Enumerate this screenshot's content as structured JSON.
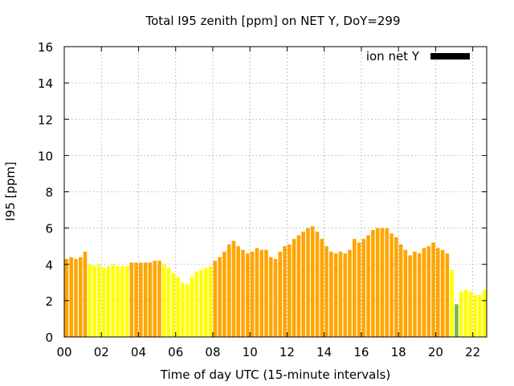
{
  "chart_data": {
    "type": "bar",
    "title": "Total I95 zenith [ppm] on NET Y, DoY=299",
    "xlabel": "Time of day UTC (15-minute intervals)",
    "ylabel": "I95 [ppm]",
    "ylim": [
      0,
      16
    ],
    "xlim": [
      0,
      22.75
    ],
    "yticks": [
      "0",
      "2",
      "4",
      "6",
      "8",
      "10",
      "12",
      "14",
      "16"
    ],
    "xticks": [
      "00",
      "02",
      "04",
      "06",
      "08",
      "10",
      "12",
      "14",
      "16",
      "18",
      "20",
      "22"
    ],
    "grid": true,
    "legend": {
      "position": "top-right",
      "entries": [
        {
          "name": "ion net Y",
          "color": "#000000"
        }
      ]
    },
    "colors": {
      "orange": "#ffa500",
      "yellow": "#ffff00",
      "green": "#7ab648"
    },
    "interval_hours": 0.25,
    "values": [
      4.3,
      4.4,
      4.3,
      4.4,
      4.7,
      4.0,
      3.9,
      4.0,
      3.8,
      3.9,
      4.0,
      3.9,
      3.9,
      3.9,
      4.1,
      4.1,
      4.1,
      4.1,
      4.1,
      4.2,
      4.2,
      4.0,
      3.8,
      3.5,
      3.3,
      3.0,
      2.9,
      3.3,
      3.6,
      3.7,
      3.8,
      3.9,
      4.2,
      4.4,
      4.7,
      5.1,
      5.3,
      5.0,
      4.8,
      4.6,
      4.7,
      4.9,
      4.8,
      4.8,
      4.4,
      4.3,
      4.7,
      5.0,
      5.1,
      5.4,
      5.6,
      5.8,
      6.0,
      6.1,
      5.8,
      5.4,
      5.0,
      4.7,
      4.6,
      4.7,
      4.6,
      4.8,
      5.4,
      5.2,
      5.4,
      5.6,
      5.9,
      6.0,
      6.0,
      6.0,
      5.7,
      5.5,
      5.1,
      4.8,
      4.5,
      4.7,
      4.6,
      4.9,
      5.0,
      5.2,
      4.9,
      4.8,
      4.6,
      3.7,
      1.8,
      2.5,
      2.6,
      2.5,
      2.3,
      2.3,
      2.6
    ],
    "bar_colors": [
      "orange",
      "orange",
      "orange",
      "orange",
      "orange",
      "yellow",
      "yellow",
      "yellow",
      "yellow",
      "yellow",
      "yellow",
      "yellow",
      "yellow",
      "yellow",
      "orange",
      "orange",
      "orange",
      "orange",
      "orange",
      "orange",
      "orange",
      "yellow",
      "yellow",
      "yellow",
      "yellow",
      "yellow",
      "yellow",
      "yellow",
      "yellow",
      "yellow",
      "yellow",
      "yellow",
      "orange",
      "orange",
      "orange",
      "orange",
      "orange",
      "orange",
      "orange",
      "orange",
      "orange",
      "orange",
      "orange",
      "orange",
      "orange",
      "orange",
      "orange",
      "orange",
      "orange",
      "orange",
      "orange",
      "orange",
      "orange",
      "orange",
      "orange",
      "orange",
      "orange",
      "orange",
      "orange",
      "orange",
      "orange",
      "orange",
      "orange",
      "orange",
      "orange",
      "orange",
      "orange",
      "orange",
      "orange",
      "orange",
      "orange",
      "orange",
      "orange",
      "orange",
      "orange",
      "orange",
      "orange",
      "orange",
      "orange",
      "orange",
      "orange",
      "orange",
      "orange",
      "yellow",
      "green",
      "yellow",
      "yellow",
      "yellow",
      "yellow",
      "yellow",
      "yellow"
    ]
  }
}
